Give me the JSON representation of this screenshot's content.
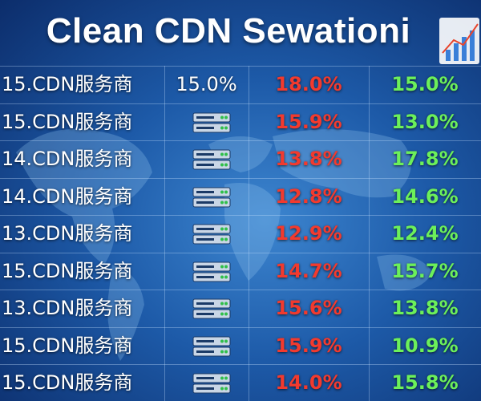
{
  "header": {
    "title": "Clean CDN Sewationi"
  },
  "table": {
    "rows": [
      {
        "name": "15.CDN服务商",
        "share": "15.0%",
        "red": "18.0%",
        "green": "15.0%"
      },
      {
        "name": "15.CDN服务商",
        "red": "15.9%",
        "green": "13.0%"
      },
      {
        "name": "14.CDN服务商",
        "red": "13.8%",
        "green": "17.8%"
      },
      {
        "name": "14.CDN服务商",
        "red": "12.8%",
        "green": "14.6%"
      },
      {
        "name": "13.CDN服务商",
        "red": "12.9%",
        "green": "12.4%"
      },
      {
        "name": "15.CDN服务商",
        "red": "14.7%",
        "green": "15.7%"
      },
      {
        "name": "13.CDN服务商",
        "red": "15.6%",
        "green": "13.8%"
      },
      {
        "name": "15.CDN服务商",
        "red": "15.9%",
        "green": "10.9%"
      },
      {
        "name": "15.CDN服务商",
        "red": "14.0%",
        "green": "15.8%"
      }
    ]
  }
}
